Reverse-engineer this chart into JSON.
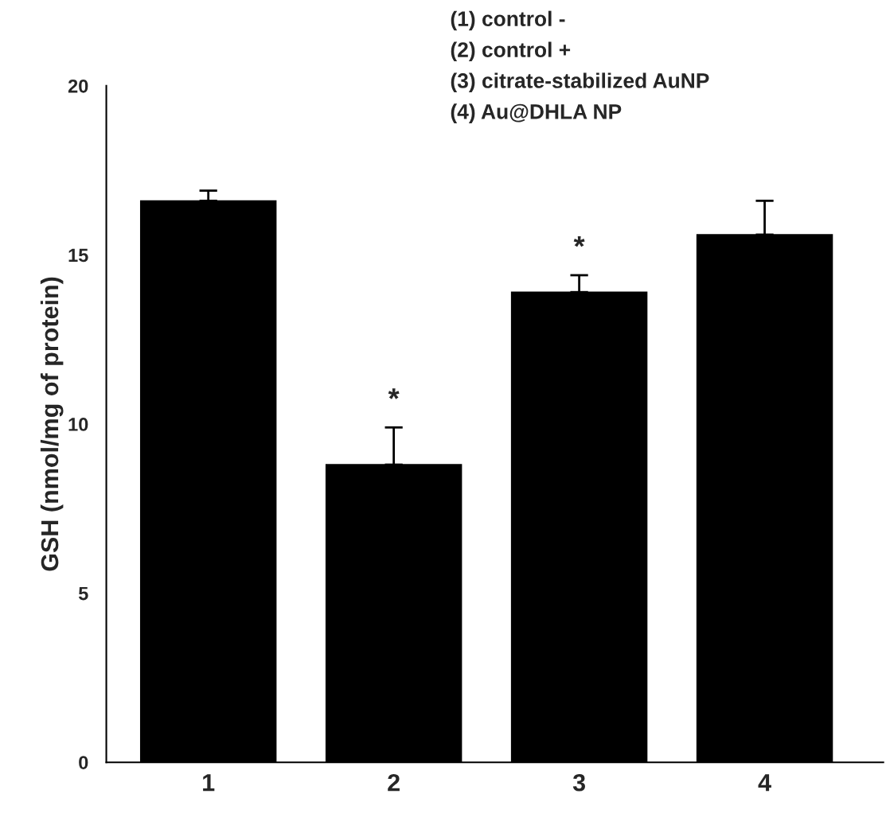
{
  "chart_data": {
    "type": "bar",
    "ylabel": "GSH (nmol/mg of protein)",
    "categories": [
      "1",
      "2",
      "3",
      "4"
    ],
    "values": [
      16.6,
      8.8,
      13.9,
      15.6
    ],
    "errors": [
      [
        16.6,
        16.9
      ],
      [
        8.8,
        9.9
      ],
      [
        13.9,
        14.4
      ],
      [
        15.6,
        16.6
      ]
    ],
    "color": "#000000",
    "ylim": [
      0,
      20
    ],
    "yticks": [
      0,
      5,
      10,
      15,
      20
    ],
    "grid": false,
    "legend": false,
    "annotations": [
      {
        "text": "*",
        "x": "2",
        "y": 9.9
      },
      {
        "text": "*",
        "x": "3",
        "y": 14.4
      },
      "(1) control -",
      "(2) control +",
      "(3) citrate-stabilized AuNP",
      "(4) Au@DHLA NP"
    ]
  }
}
